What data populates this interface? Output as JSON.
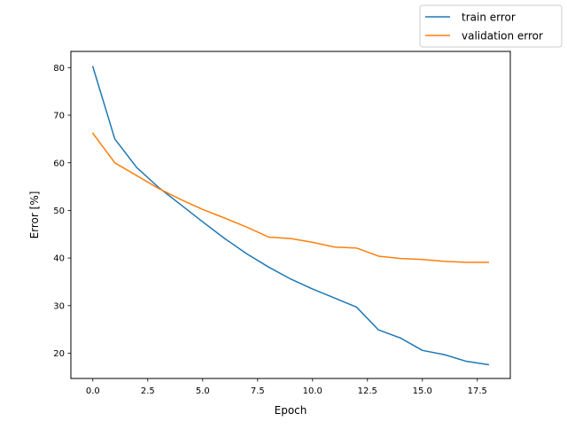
{
  "chart_data": {
    "type": "line",
    "title": "",
    "xlabel": "Epoch",
    "ylabel": "Error [%]",
    "xlim": [
      -1.0,
      19.0
    ],
    "ylim": [
      14.7,
      83.4
    ],
    "xticks": [
      0.0,
      2.5,
      5.0,
      7.5,
      10.0,
      12.5,
      15.0,
      17.5
    ],
    "xtick_labels": [
      "0.0",
      "2.5",
      "5.0",
      "7.5",
      "10.0",
      "12.5",
      "15.0",
      "17.5"
    ],
    "yticks": [
      20,
      30,
      40,
      50,
      60,
      70,
      80
    ],
    "ytick_labels": [
      "20",
      "30",
      "40",
      "50",
      "60",
      "70",
      "80"
    ],
    "grid": false,
    "legend_position": "top-right",
    "x": [
      0,
      1,
      2,
      3,
      4,
      5,
      6,
      7,
      8,
      9,
      10,
      11,
      12,
      13,
      14,
      15,
      16,
      17,
      18
    ],
    "series": [
      {
        "name": "train error",
        "color": "#1f77b4",
        "values": [
          80.2,
          65.0,
          59.0,
          54.8,
          51.2,
          47.6,
          44.1,
          40.9,
          38.1,
          35.6,
          33.5,
          31.6,
          29.7,
          24.9,
          23.2,
          20.6,
          19.7,
          18.3,
          17.6
        ]
      },
      {
        "name": "validation error",
        "color": "#ff7f0e",
        "values": [
          66.2,
          60.0,
          57.3,
          54.6,
          52.3,
          50.2,
          48.4,
          46.5,
          44.4,
          44.1,
          43.3,
          42.3,
          42.1,
          40.4,
          39.9,
          39.7,
          39.3,
          39.1,
          39.1
        ]
      }
    ]
  }
}
